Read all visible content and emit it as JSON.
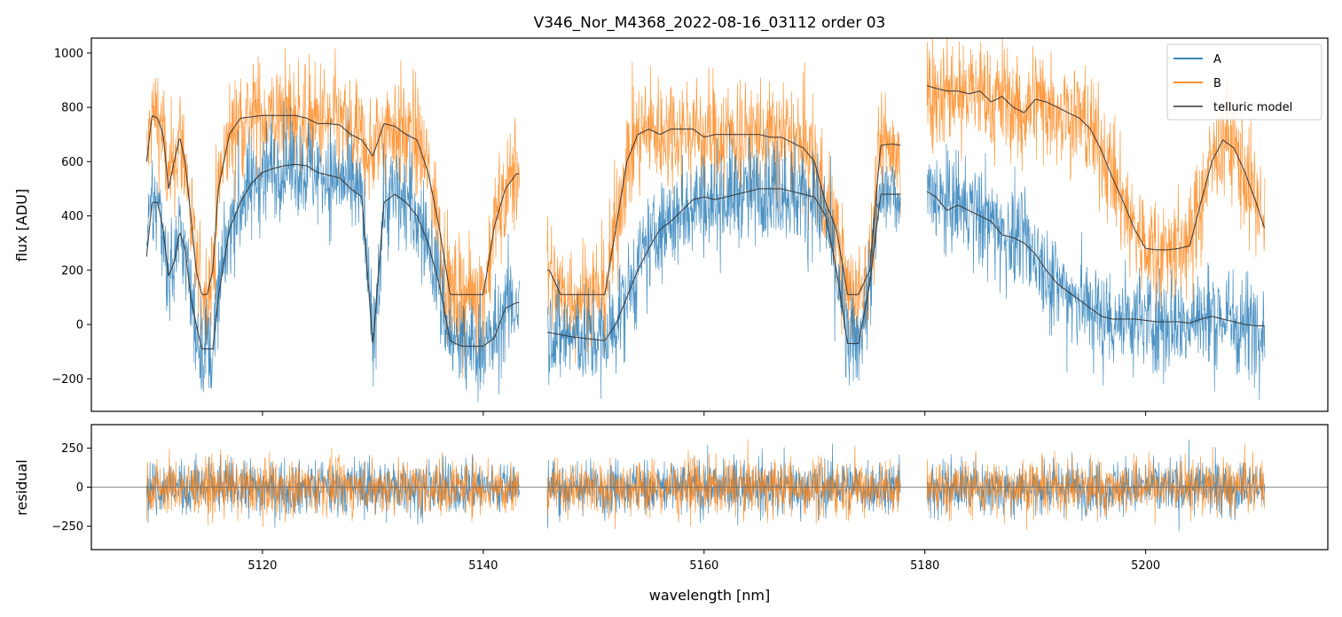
{
  "chart_data": [
    {
      "type": "line",
      "panel": "top",
      "title": "V346_Nor_M4368_2022-08-16_03112  order 03",
      "xlabel": "",
      "ylabel": "flux [ADU]",
      "xlim": [
        5104.5,
        5216.5
      ],
      "ylim": [
        -320,
        1055
      ],
      "xticks": [
        5120,
        5140,
        5160,
        5180,
        5200
      ],
      "yticks": [
        -200,
        0,
        200,
        400,
        600,
        800,
        1000
      ],
      "ytick_labels": [
        "−200",
        "0",
        "200",
        "400",
        "600",
        "800",
        "1000"
      ],
      "legend": {
        "placement": "top-right",
        "entries": [
          {
            "label": "A",
            "color": "#1f77b4"
          },
          {
            "label": "B",
            "color": "#ff7f0e"
          },
          {
            "label": "telluric model",
            "color": "#333333"
          }
        ]
      },
      "segments": [
        {
          "x_range": [
            5109.5,
            5143.3
          ],
          "model_A": {
            "x": [
              5109.5,
              5110.0,
              5110.5,
              5111.0,
              5111.5,
              5112.0,
              5112.5,
              5113.0,
              5113.5,
              5114.0,
              5114.5,
              5115.0,
              5115.5,
              5116.0,
              5117.0,
              5118.0,
              5119.0,
              5120.0,
              5121.0,
              5122.0,
              5123.0,
              5124.0,
              5125.0,
              5126.0,
              5127.0,
              5128.0,
              5129.0,
              5130.0,
              5131.0,
              5132.0,
              5133.0,
              5134.0,
              5135.0,
              5136.0,
              5137.0,
              5138.0,
              5139.0,
              5140.0,
              5141.0,
              5142.0,
              5143.0
            ],
            "y": [
              250,
              450,
              450,
              350,
              180,
              230,
              340,
              280,
              100,
              0,
              -90,
              -90,
              -90,
              100,
              350,
              450,
              520,
              560,
              575,
              585,
              590,
              585,
              560,
              550,
              540,
              500,
              470,
              -80,
              450,
              480,
              450,
              400,
              300,
              150,
              -60,
              -80,
              -80,
              -80,
              -50,
              60,
              80
            ]
          },
          "model_B": {
            "x": [
              5109.5,
              5110.0,
              5110.5,
              5111.0,
              5111.5,
              5112.0,
              5112.5,
              5113.0,
              5113.5,
              5114.0,
              5114.5,
              5115.0,
              5115.5,
              5116.0,
              5117.0,
              5118.0,
              5119.0,
              5120.0,
              5121.0,
              5122.0,
              5123.0,
              5124.0,
              5125.0,
              5126.0,
              5127.0,
              5128.0,
              5129.0,
              5130.0,
              5131.0,
              5132.0,
              5133.0,
              5134.0,
              5135.0,
              5136.0,
              5137.0,
              5138.0,
              5139.0,
              5140.0,
              5141.0,
              5142.0,
              5143.0
            ],
            "y": [
              600,
              770,
              760,
              700,
              500,
              600,
              690,
              600,
              400,
              200,
              110,
              110,
              200,
              500,
              700,
              760,
              765,
              770,
              770,
              770,
              770,
              760,
              740,
              740,
              735,
              700,
              680,
              620,
              740,
              730,
              700,
              680,
              560,
              360,
              110,
              110,
              110,
              110,
              360,
              500,
              555
            ]
          }
        },
        {
          "x_range": [
            5145.8,
            5177.8
          ],
          "model_A": {
            "x": [
              5146.0,
              5148.0,
              5150.0,
              5151.0,
              5152.0,
              5153.0,
              5154.0,
              5155.0,
              5156.0,
              5157.0,
              5158.0,
              5159.0,
              5160.0,
              5161.0,
              5162.0,
              5163.0,
              5164.0,
              5165.0,
              5166.0,
              5167.0,
              5168.0,
              5169.0,
              5170.0,
              5171.0,
              5172.0,
              5173.0,
              5174.0,
              5175.0,
              5176.0,
              5177.0,
              5177.8
            ],
            "y": [
              -30,
              -45,
              -55,
              -60,
              0,
              100,
              200,
              280,
              350,
              380,
              420,
              460,
              470,
              460,
              470,
              480,
              490,
              500,
              500,
              500,
              490,
              480,
              470,
              400,
              200,
              -70,
              -70,
              150,
              480,
              480,
              480
            ]
          },
          "model_B": {
            "x": [
              5146.0,
              5147.0,
              5148.0,
              5149.0,
              5150.0,
              5151.0,
              5152.0,
              5153.0,
              5154.0,
              5155.0,
              5156.0,
              5157.0,
              5158.0,
              5159.0,
              5160.0,
              5161.0,
              5162.0,
              5163.0,
              5164.0,
              5165.0,
              5166.0,
              5167.0,
              5168.0,
              5169.0,
              5170.0,
              5171.0,
              5172.0,
              5173.0,
              5174.0,
              5175.0,
              5176.0,
              5177.0,
              5177.8
            ],
            "y": [
              200,
              110,
              110,
              110,
              110,
              110,
              350,
              600,
              700,
              720,
              700,
              720,
              720,
              720,
              690,
              700,
              700,
              700,
              700,
              700,
              690,
              690,
              670,
              650,
              600,
              450,
              350,
              110,
              110,
              200,
              660,
              665,
              660
            ]
          }
        },
        {
          "x_range": [
            5180.2,
            5210.8
          ],
          "model_A": {
            "x": [
              5180.2,
              5181.0,
              5182.0,
              5183.0,
              5184.0,
              5185.0,
              5186.0,
              5187.0,
              5188.0,
              5189.0,
              5190.0,
              5191.0,
              5192.0,
              5193.0,
              5194.0,
              5195.0,
              5196.0,
              5197.0,
              5198.0,
              5199.0,
              5200.0,
              5201.0,
              5202.0,
              5203.0,
              5204.0,
              5205.0,
              5206.0,
              5207.0,
              5208.0,
              5209.0,
              5210.0
            ],
            "y": [
              490,
              470,
              420,
              440,
              420,
              400,
              380,
              330,
              320,
              300,
              260,
              200,
              150,
              120,
              90,
              60,
              30,
              20,
              20,
              20,
              15,
              10,
              10,
              10,
              5,
              20,
              30,
              20,
              10,
              0,
              -5
            ]
          },
          "model_B": {
            "x": [
              5180.2,
              5181.0,
              5182.0,
              5183.0,
              5184.0,
              5185.0,
              5186.0,
              5187.0,
              5188.0,
              5189.0,
              5190.0,
              5191.0,
              5192.0,
              5193.0,
              5194.0,
              5195.0,
              5196.0,
              5197.0,
              5198.0,
              5199.0,
              5200.0,
              5201.0,
              5202.0,
              5203.0,
              5204.0,
              5205.0,
              5206.0,
              5207.0,
              5208.0,
              5209.0,
              5210.0,
              5210.8
            ],
            "y": [
              880,
              870,
              860,
              860,
              850,
              860,
              820,
              840,
              800,
              780,
              830,
              820,
              800,
              780,
              760,
              720,
              640,
              540,
              450,
              350,
              280,
              275,
              275,
              280,
              290,
              450,
              600,
              680,
              650,
              560,
              450,
              350
            ]
          }
        }
      ],
      "noise_sigma_A": 120,
      "noise_sigma_B": 130
    },
    {
      "type": "line",
      "panel": "bottom",
      "title": "",
      "xlabel": "wavelength [nm]",
      "ylabel": "residual",
      "xlim": [
        5104.5,
        5216.5
      ],
      "ylim": [
        -400,
        400
      ],
      "xticks": [
        5120,
        5140,
        5160,
        5180,
        5200
      ],
      "xtick_labels": [
        "5120",
        "5140",
        "5160",
        "5180",
        "5200"
      ],
      "yticks": [
        -250,
        0,
        250
      ],
      "ytick_labels": [
        "−250",
        "0",
        "250"
      ],
      "zero_line": 0,
      "noise_sigma": 110
    }
  ],
  "colors": {
    "A": "#1f77b4",
    "B": "#ff7f0e",
    "model": "#333333",
    "zero_line": "#666666"
  }
}
